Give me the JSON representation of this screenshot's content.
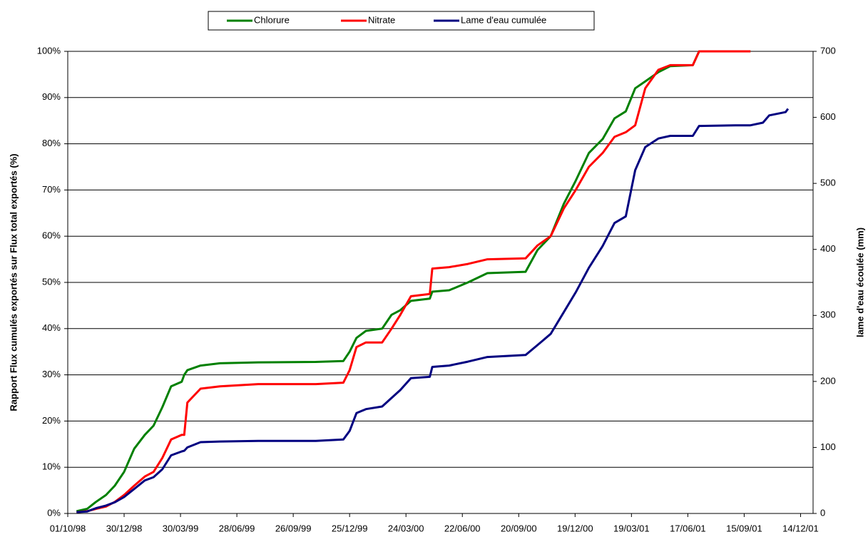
{
  "chart_data": {
    "type": "line",
    "x": [
      "15/10/98",
      "01/11/98",
      "15/11/98",
      "01/12/98",
      "15/12/98",
      "30/12/98",
      "15/01/99",
      "01/02/99",
      "15/02/99",
      "01/03/99",
      "15/03/99",
      "01/04/99",
      "05/04/99",
      "10/04/99",
      "01/05/99",
      "01/06/99",
      "01/08/99",
      "01/11/99",
      "15/12/99",
      "25/12/99",
      "05/01/00",
      "20/01/00",
      "15/02/00",
      "01/03/00",
      "15/03/00",
      "01/04/00",
      "01/05/00",
      "05/05/00",
      "01/06/00",
      "01/07/00",
      "01/08/00",
      "01/10/00",
      "20/10/00",
      "10/11/00",
      "01/12/00",
      "20/12/00",
      "10/01/01",
      "01/02/01",
      "20/02/01",
      "10/03/01",
      "25/03/01",
      "10/04/01",
      "01/05/01",
      "20/05/01",
      "25/06/01",
      "05/07/01",
      "01/09/01",
      "25/09/01",
      "15/10/01",
      "25/10/01",
      "20/11/01",
      "24/11/01"
    ],
    "series": [
      {
        "name": "Chlorure",
        "color": "#008000",
        "values": [
          0.5,
          1,
          2.5,
          4,
          6,
          9,
          14,
          17,
          19,
          23,
          27.5,
          28.5,
          30,
          31,
          32,
          32.5,
          32.7,
          32.8,
          33,
          35,
          38,
          39.5,
          40,
          43,
          44,
          46,
          46.5,
          48,
          48.3,
          50,
          52,
          52.3,
          57,
          60,
          67,
          72,
          78,
          81,
          85.5,
          87,
          92,
          93.5,
          95.5,
          96.8,
          97,
          100,
          100,
          100,
          null,
          null,
          null,
          null
        ]
      },
      {
        "name": "Nitrate",
        "color": "#ff0000",
        "values": [
          0.3,
          0.5,
          1,
          1.5,
          2.5,
          4,
          6,
          8,
          9,
          12,
          16,
          17,
          17,
          24,
          27,
          27.5,
          28,
          28,
          28.3,
          31,
          36,
          37,
          37,
          40,
          43,
          47,
          47.5,
          53,
          53.3,
          54,
          55,
          55.2,
          58,
          60,
          66,
          70,
          75,
          78,
          81.5,
          82.5,
          84,
          92,
          96,
          97,
          97,
          100,
          100,
          100,
          null,
          null,
          null,
          null
        ]
      },
      {
        "name": "Lame d'eau cumulée",
        "color": "#000080",
        "axis": "y2",
        "values": [
          2,
          3,
          8,
          12,
          17,
          25,
          37,
          50,
          55,
          67,
          88,
          94,
          95,
          100,
          108,
          109,
          110,
          110,
          112,
          125,
          152,
          158,
          162,
          175,
          187,
          205,
          207,
          222,
          224,
          230,
          237,
          240,
          255,
          272,
          305,
          335,
          372,
          405,
          440,
          450,
          520,
          555,
          568,
          572,
          572,
          587,
          588,
          588,
          592,
          603,
          608,
          613
        ]
      }
    ],
    "xlim": [
      "01/10/98",
      "03/01/02"
    ],
    "xticks": [
      "01/10/98",
      "30/12/98",
      "30/03/99",
      "28/06/99",
      "26/09/99",
      "25/12/99",
      "24/03/00",
      "22/06/00",
      "20/09/00",
      "19/12/00",
      "19/03/01",
      "17/06/01",
      "15/09/01",
      "14/12/01"
    ],
    "ylim": [
      0,
      100
    ],
    "yticks": [
      {
        "value": 0,
        "label": "0%"
      },
      {
        "value": 10,
        "label": "10%"
      },
      {
        "value": 20,
        "label": "20%"
      },
      {
        "value": 30,
        "label": "30%"
      },
      {
        "value": 40,
        "label": "40%"
      },
      {
        "value": 50,
        "label": "50%"
      },
      {
        "value": 60,
        "label": "60%"
      },
      {
        "value": 70,
        "label": "70%"
      },
      {
        "value": 80,
        "label": "80%"
      },
      {
        "value": 90,
        "label": "90%"
      },
      {
        "value": 100,
        "label": "100%"
      }
    ],
    "y2lim": [
      0,
      700
    ],
    "y2ticks": [
      0,
      100,
      200,
      300,
      400,
      500,
      600,
      700
    ],
    "ylabel": "Rapport Flux cumulés exportés sur Flux total exportés (%)",
    "y2label": "lame d'eau écoulée (mm)",
    "grid": true,
    "legend": "top"
  }
}
